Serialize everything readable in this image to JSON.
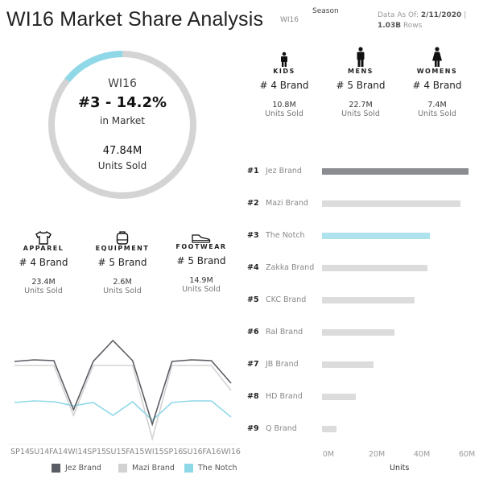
{
  "header": {
    "title": "WI16 Market Share Analysis",
    "season_label": "Season",
    "season_value": "WI16",
    "data_as_of_label": "Data As Of:",
    "data_as_of": "2/11/2020",
    "separator": "|",
    "rows": "1.03B",
    "rows_label": "Rows"
  },
  "summary": {
    "season": "WI16",
    "rank_share": "#3 - 14.2%",
    "share_label": "in Market",
    "share_percent": 14.2,
    "units": "47.84M",
    "units_label": "Units Sold",
    "colors": {
      "share": "#8ed8e8",
      "track": "#d4d4d4"
    }
  },
  "gender": [
    {
      "name": "KIDS",
      "icon": "child-icon",
      "rank": "# 4 Brand",
      "units": "10.8M",
      "units_label": "Units Sold"
    },
    {
      "name": "MENS",
      "icon": "man-icon",
      "rank": "# 5 Brand",
      "units": "22.7M",
      "units_label": "Units Sold"
    },
    {
      "name": "WOMENS",
      "icon": "woman-icon",
      "rank": "# 4 Brand",
      "units": "7.4M",
      "units_label": "Units Sold"
    }
  ],
  "product": [
    {
      "name": "APPAREL",
      "icon": "tshirt-icon",
      "rank": "# 4 Brand",
      "units": "23.4M",
      "units_label": "Units Sold"
    },
    {
      "name": "EQUIPMENT",
      "icon": "backpack-icon",
      "rank": "# 5 Brand",
      "units": "2.6M",
      "units_label": "Units Sold"
    },
    {
      "name": "FOOTWEAR",
      "icon": "shoe-icon",
      "rank": "# 5 Brand",
      "units": "14.9M",
      "units_label": "Units Sold"
    }
  ],
  "chart_data": [
    {
      "type": "bar",
      "orientation": "horizontal",
      "xlabel": "Units",
      "xlim": [
        0,
        65
      ],
      "x_ticks": [
        "0M",
        "20M",
        "40M",
        "60M"
      ],
      "ranks": [
        "#1",
        "#2",
        "#3",
        "#4",
        "#5",
        "#6",
        "#7",
        "#8",
        "#9"
      ],
      "categories": [
        "Jez Brand",
        "Mazi Brand",
        "The Notch",
        "Zakka Brand",
        "CKC Brand",
        "Ral Brand",
        "JB Brand",
        "HD Brand",
        "Q Brand"
      ],
      "values": [
        65,
        61.4,
        47.84,
        46.8,
        41,
        32,
        23,
        15,
        6.4
      ],
      "colors": [
        "#8a8c91",
        "#dcdcdc",
        "#aee3ee",
        "#dcdcdc",
        "#dcdcdc",
        "#dcdcdc",
        "#dcdcdc",
        "#dcdcdc",
        "#dcdcdc"
      ]
    },
    {
      "type": "line",
      "categories": [
        "SP14",
        "SU14",
        "FA14",
        "WI14",
        "SP15",
        "SU15",
        "FA15",
        "WI15",
        "SP16",
        "SU16",
        "FA16",
        "WI16"
      ],
      "y_axis_shown": false,
      "legend": "bottom",
      "series": [
        {
          "name": "Jez Brand",
          "color": "#5a5c63",
          "values": [
            102,
            104,
            103,
            42,
            102,
            128,
            103,
            24,
            102,
            104,
            103,
            75
          ]
        },
        {
          "name": "Mazi Brand",
          "color": "#d2d2d2",
          "values": [
            97,
            97,
            97,
            35,
            97,
            97,
            97,
            6,
            97,
            97,
            97,
            66
          ]
        },
        {
          "name": "The Notch",
          "color": "#8ed8e8",
          "values": [
            51,
            53,
            52,
            47,
            51,
            35,
            52,
            29,
            51,
            53,
            53,
            33
          ]
        }
      ]
    }
  ]
}
